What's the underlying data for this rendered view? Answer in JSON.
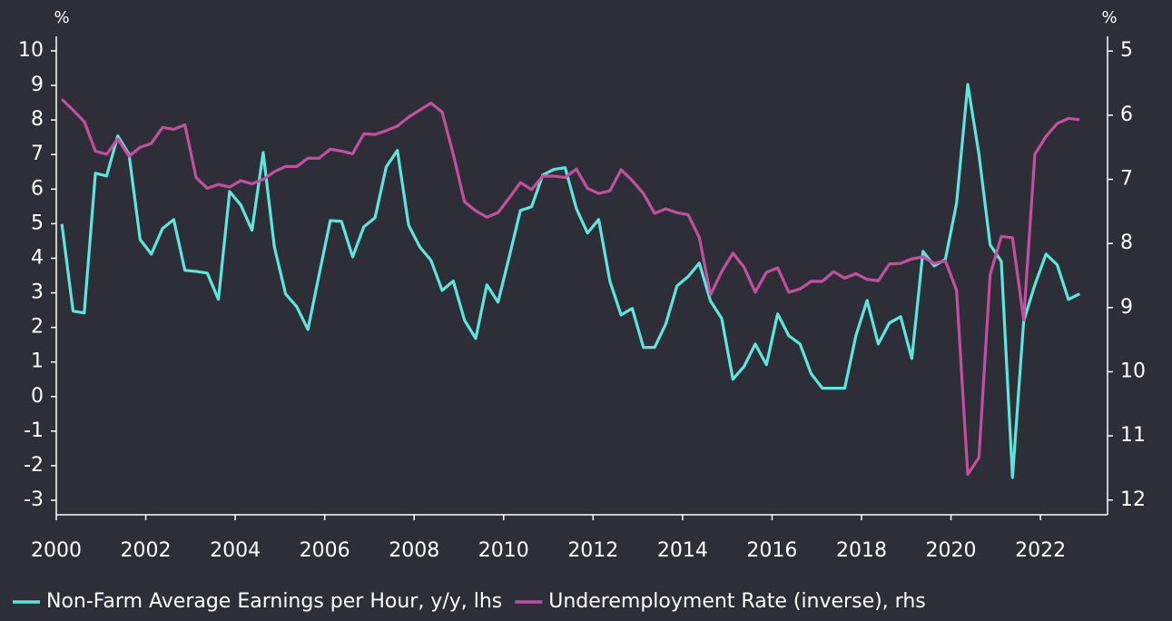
{
  "chart_data": {
    "type": "line",
    "y_unit": "%",
    "y2_unit": "%",
    "x": [
      2000.125,
      2000.375,
      2000.625,
      2000.875,
      2001.125,
      2001.375,
      2001.625,
      2001.875,
      2002.125,
      2002.375,
      2002.625,
      2002.875,
      2003.125,
      2003.375,
      2003.625,
      2003.875,
      2004.125,
      2004.375,
      2004.625,
      2004.875,
      2005.125,
      2005.375,
      2005.625,
      2005.875,
      2006.125,
      2006.375,
      2006.625,
      2006.875,
      2007.125,
      2007.375,
      2007.625,
      2007.875,
      2008.125,
      2008.375,
      2008.625,
      2008.875,
      2009.125,
      2009.375,
      2009.625,
      2009.875,
      2010.125,
      2010.375,
      2010.625,
      2010.875,
      2011.125,
      2011.375,
      2011.625,
      2011.875,
      2012.125,
      2012.375,
      2012.625,
      2012.875,
      2013.125,
      2013.375,
      2013.625,
      2013.875,
      2014.125,
      2014.375,
      2014.625,
      2014.875,
      2015.125,
      2015.375,
      2015.625,
      2015.875,
      2016.125,
      2016.375,
      2016.625,
      2016.875,
      2017.125,
      2017.375,
      2017.625,
      2017.875,
      2018.125,
      2018.375,
      2018.625,
      2018.875,
      2019.125,
      2019.375,
      2019.625,
      2019.875,
      2020.125,
      2020.375,
      2020.625,
      2020.875,
      2021.125,
      2021.375,
      2021.625,
      2021.875,
      2022.125,
      2022.375,
      2022.625,
      2022.875
    ],
    "series": [
      {
        "name": "Non-Farm Average Earnings per Hour, y/y, lhs",
        "color": "#5ce6dd",
        "axis": "y",
        "values": [
          4.99,
          2.47,
          2.42,
          6.46,
          6.38,
          7.54,
          7.01,
          4.54,
          4.12,
          4.86,
          5.12,
          3.65,
          3.62,
          3.57,
          2.81,
          5.93,
          5.54,
          4.81,
          7.06,
          4.33,
          2.97,
          2.6,
          1.94,
          3.52,
          5.09,
          5.07,
          4.04,
          4.91,
          5.17,
          6.64,
          7.12,
          4.96,
          4.33,
          3.94,
          3.07,
          3.34,
          2.21,
          1.68,
          3.23,
          2.73,
          4.04,
          5.38,
          5.49,
          6.41,
          6.57,
          6.62,
          5.44,
          4.73,
          5.12,
          3.34,
          2.36,
          2.55,
          1.42,
          1.42,
          2.1,
          3.2,
          3.47,
          3.86,
          2.76,
          2.26,
          0.5,
          0.87,
          1.52,
          0.92,
          2.39,
          1.76,
          1.52,
          0.66,
          0.24,
          0.24,
          0.24,
          1.76,
          2.78,
          1.52,
          2.13,
          2.31,
          1.1,
          4.2,
          3.78,
          3.97,
          5.59,
          9.03,
          7.01,
          4.39,
          3.91,
          -2.34,
          2.18,
          3.23,
          4.12,
          3.81,
          2.81,
          2.97
        ]
      },
      {
        "name": "Underemployment Rate (inverse), rhs",
        "color": "#c2509f",
        "axis": "y2",
        "values": [
          5.75,
          5.92,
          6.1,
          6.56,
          6.61,
          6.37,
          6.64,
          6.5,
          6.44,
          6.19,
          6.22,
          6.15,
          6.97,
          7.14,
          7.08,
          7.12,
          7.02,
          7.07,
          7.0,
          6.88,
          6.8,
          6.8,
          6.67,
          6.67,
          6.53,
          6.56,
          6.6,
          6.29,
          6.3,
          6.24,
          6.17,
          6.03,
          5.92,
          5.81,
          5.95,
          6.61,
          7.35,
          7.49,
          7.59,
          7.52,
          7.29,
          7.05,
          7.16,
          6.95,
          6.95,
          6.97,
          6.84,
          7.14,
          7.22,
          7.18,
          6.85,
          7.02,
          7.22,
          7.53,
          7.46,
          7.52,
          7.55,
          7.91,
          8.8,
          8.44,
          8.15,
          8.37,
          8.76,
          8.45,
          8.38,
          8.76,
          8.71,
          8.59,
          8.59,
          8.44,
          8.54,
          8.47,
          8.56,
          8.58,
          8.32,
          8.31,
          8.24,
          8.21,
          8.31,
          8.27,
          8.73,
          11.6,
          11.34,
          8.49,
          7.89,
          7.91,
          9.19,
          6.61,
          6.33,
          6.13,
          6.05,
          6.07
        ]
      }
    ],
    "xlim": [
      2000,
      2023.5
    ],
    "xticks": [
      2000,
      2002,
      2004,
      2006,
      2008,
      2010,
      2012,
      2014,
      2016,
      2018,
      2020,
      2022
    ],
    "ylim": [
      -3.42,
      10.42
    ],
    "yticks": [
      -3,
      -2,
      -1,
      0,
      1,
      2,
      3,
      4,
      5,
      6,
      7,
      8,
      9,
      10
    ],
    "y2lim": [
      12.23,
      4.77
    ],
    "y2ticks": [
      5,
      6,
      7,
      8,
      9,
      10,
      11,
      12
    ],
    "legend": "bottom"
  }
}
